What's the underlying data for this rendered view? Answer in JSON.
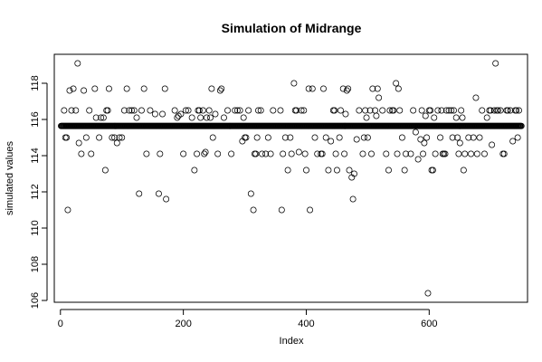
{
  "chart_data": {
    "type": "scatter",
    "title": "Simulation of Midrange",
    "xlabel": "Index",
    "ylabel": "simulated values",
    "xlim": [
      -10,
      760
    ],
    "ylim": [
      105.9,
      119.6
    ],
    "xticks": [
      0,
      200,
      400,
      600
    ],
    "yticks": [
      106,
      108,
      110,
      112,
      114,
      116,
      118
    ],
    "grid": false,
    "marker": "open-circle",
    "colors": {
      "marker": "#000000",
      "axis": "#000000",
      "background": "#ffffff"
    },
    "baseline_value": 115.64,
    "baseline_index_range": [
      1,
      750
    ],
    "points": [
      [
        6,
        116.5
      ],
      [
        8,
        115.0
      ],
      [
        10,
        115.0
      ],
      [
        12,
        111.0
      ],
      [
        15,
        117.6
      ],
      [
        18,
        116.5
      ],
      [
        21,
        117.7
      ],
      [
        25,
        116.5
      ],
      [
        28,
        119.1
      ],
      [
        30,
        114.7
      ],
      [
        34,
        114.1
      ],
      [
        38,
        117.6
      ],
      [
        42,
        115.0
      ],
      [
        47,
        116.5
      ],
      [
        50,
        114.1
      ],
      [
        56,
        117.7
      ],
      [
        58,
        116.1
      ],
      [
        63,
        115.0
      ],
      [
        66,
        116.1
      ],
      [
        70,
        116.1
      ],
      [
        73,
        113.2
      ],
      [
        75,
        116.5
      ],
      [
        77,
        116.5
      ],
      [
        79,
        117.7
      ],
      [
        84,
        115.0
      ],
      [
        88,
        115.0
      ],
      [
        92,
        114.7
      ],
      [
        96,
        115.0
      ],
      [
        100,
        115.0
      ],
      [
        104,
        116.5
      ],
      [
        108,
        117.7
      ],
      [
        112,
        116.5
      ],
      [
        116,
        116.5
      ],
      [
        120,
        116.5
      ],
      [
        124,
        116.1
      ],
      [
        128,
        111.9
      ],
      [
        132,
        116.5
      ],
      [
        136,
        117.7
      ],
      [
        140,
        114.1
      ],
      [
        146,
        116.5
      ],
      [
        154,
        116.3
      ],
      [
        160,
        111.9
      ],
      [
        162,
        114.1
      ],
      [
        166,
        116.3
      ],
      [
        170,
        117.7
      ],
      [
        172,
        111.6
      ],
      [
        186,
        116.5
      ],
      [
        190,
        116.1
      ],
      [
        192,
        116.2
      ],
      [
        196,
        116.3
      ],
      [
        200,
        114.1
      ],
      [
        204,
        116.5
      ],
      [
        208,
        116.5
      ],
      [
        214,
        116.1
      ],
      [
        218,
        113.2
      ],
      [
        222,
        114.1
      ],
      [
        224,
        116.5
      ],
      [
        226,
        116.5
      ],
      [
        228,
        116.1
      ],
      [
        232,
        116.5
      ],
      [
        234,
        114.1
      ],
      [
        236,
        114.2
      ],
      [
        238,
        116.1
      ],
      [
        242,
        116.5
      ],
      [
        244,
        116.1
      ],
      [
        246,
        117.7
      ],
      [
        248,
        115.0
      ],
      [
        252,
        116.3
      ],
      [
        256,
        114.1
      ],
      [
        260,
        117.6
      ],
      [
        262,
        117.7
      ],
      [
        266,
        116.1
      ],
      [
        272,
        116.5
      ],
      [
        278,
        114.1
      ],
      [
        284,
        116.5
      ],
      [
        288,
        116.5
      ],
      [
        292,
        116.5
      ],
      [
        296,
        114.8
      ],
      [
        298,
        116.1
      ],
      [
        300,
        115.0
      ],
      [
        302,
        115.0
      ],
      [
        306,
        116.5
      ],
      [
        310,
        111.9
      ],
      [
        314,
        111.0
      ],
      [
        316,
        114.1
      ],
      [
        318,
        114.1
      ],
      [
        320,
        115.0
      ],
      [
        322,
        116.5
      ],
      [
        326,
        116.5
      ],
      [
        328,
        114.1
      ],
      [
        334,
        114.1
      ],
      [
        338,
        115.0
      ],
      [
        342,
        114.1
      ],
      [
        346,
        116.5
      ],
      [
        358,
        116.5
      ],
      [
        360,
        111.0
      ],
      [
        362,
        114.1
      ],
      [
        366,
        115.0
      ],
      [
        370,
        113.2
      ],
      [
        374,
        115.0
      ],
      [
        376,
        114.1
      ],
      [
        380,
        118.0
      ],
      [
        382,
        116.5
      ],
      [
        384,
        116.5
      ],
      [
        388,
        114.2
      ],
      [
        392,
        116.5
      ],
      [
        396,
        116.5
      ],
      [
        398,
        114.1
      ],
      [
        400,
        113.2
      ],
      [
        404,
        117.7
      ],
      [
        406,
        111.0
      ],
      [
        410,
        117.7
      ],
      [
        414,
        115.0
      ],
      [
        418,
        114.1
      ],
      [
        424,
        114.1
      ],
      [
        426,
        114.1
      ],
      [
        428,
        117.7
      ],
      [
        432,
        115.0
      ],
      [
        436,
        113.2
      ],
      [
        440,
        114.8
      ],
      [
        444,
        116.5
      ],
      [
        446,
        116.5
      ],
      [
        448,
        114.1
      ],
      [
        450,
        113.2
      ],
      [
        454,
        115.0
      ],
      [
        456,
        116.5
      ],
      [
        460,
        117.7
      ],
      [
        462,
        114.1
      ],
      [
        464,
        116.3
      ],
      [
        466,
        117.6
      ],
      [
        468,
        117.7
      ],
      [
        470,
        113.2
      ],
      [
        474,
        112.8
      ],
      [
        476,
        111.6
      ],
      [
        478,
        113.0
      ],
      [
        482,
        114.9
      ],
      [
        486,
        116.5
      ],
      [
        492,
        114.1
      ],
      [
        494,
        115.0
      ],
      [
        496,
        116.5
      ],
      [
        498,
        116.1
      ],
      [
        500,
        115.0
      ],
      [
        504,
        116.5
      ],
      [
        506,
        114.1
      ],
      [
        508,
        117.7
      ],
      [
        512,
        116.5
      ],
      [
        514,
        116.2
      ],
      [
        516,
        117.7
      ],
      [
        518,
        117.2
      ],
      [
        524,
        116.5
      ],
      [
        530,
        114.1
      ],
      [
        534,
        113.2
      ],
      [
        536,
        116.5
      ],
      [
        540,
        116.5
      ],
      [
        542,
        116.5
      ],
      [
        546,
        118.0
      ],
      [
        548,
        114.1
      ],
      [
        550,
        117.7
      ],
      [
        552,
        116.5
      ],
      [
        556,
        115.0
      ],
      [
        560,
        113.2
      ],
      [
        562,
        114.1
      ],
      [
        570,
        114.1
      ],
      [
        574,
        116.5
      ],
      [
        578,
        115.3
      ],
      [
        582,
        113.8
      ],
      [
        586,
        114.9
      ],
      [
        588,
        116.5
      ],
      [
        590,
        114.1
      ],
      [
        592,
        114.7
      ],
      [
        594,
        116.2
      ],
      [
        596,
        115.0
      ],
      [
        598,
        106.4
      ],
      [
        600,
        116.5
      ],
      [
        602,
        116.5
      ],
      [
        604,
        113.2
      ],
      [
        606,
        113.2
      ],
      [
        608,
        116.1
      ],
      [
        610,
        114.1
      ],
      [
        614,
        116.5
      ],
      [
        618,
        115.0
      ],
      [
        620,
        116.5
      ],
      [
        622,
        114.1
      ],
      [
        624,
        114.1
      ],
      [
        626,
        114.1
      ],
      [
        628,
        116.5
      ],
      [
        632,
        116.5
      ],
      [
        636,
        116.5
      ],
      [
        638,
        115.0
      ],
      [
        640,
        116.5
      ],
      [
        644,
        116.1
      ],
      [
        646,
        115.0
      ],
      [
        648,
        114.1
      ],
      [
        650,
        114.7
      ],
      [
        652,
        116.5
      ],
      [
        654,
        116.1
      ],
      [
        656,
        113.2
      ],
      [
        658,
        114.1
      ],
      [
        664,
        115.0
      ],
      [
        668,
        114.1
      ],
      [
        672,
        115.0
      ],
      [
        676,
        117.2
      ],
      [
        678,
        114.1
      ],
      [
        682,
        115.0
      ],
      [
        686,
        116.5
      ],
      [
        690,
        114.1
      ],
      [
        694,
        116.1
      ],
      [
        698,
        116.5
      ],
      [
        700,
        116.5
      ],
      [
        702,
        114.6
      ],
      [
        706,
        116.5
      ],
      [
        708,
        119.1
      ],
      [
        710,
        116.5
      ],
      [
        712,
        116.5
      ],
      [
        716,
        116.5
      ],
      [
        720,
        114.1
      ],
      [
        722,
        114.1
      ],
      [
        726,
        116.5
      ],
      [
        728,
        116.5
      ],
      [
        732,
        116.5
      ],
      [
        736,
        114.8
      ],
      [
        740,
        116.5
      ],
      [
        742,
        116.5
      ],
      [
        744,
        115.0
      ],
      [
        746,
        116.5
      ]
    ]
  }
}
